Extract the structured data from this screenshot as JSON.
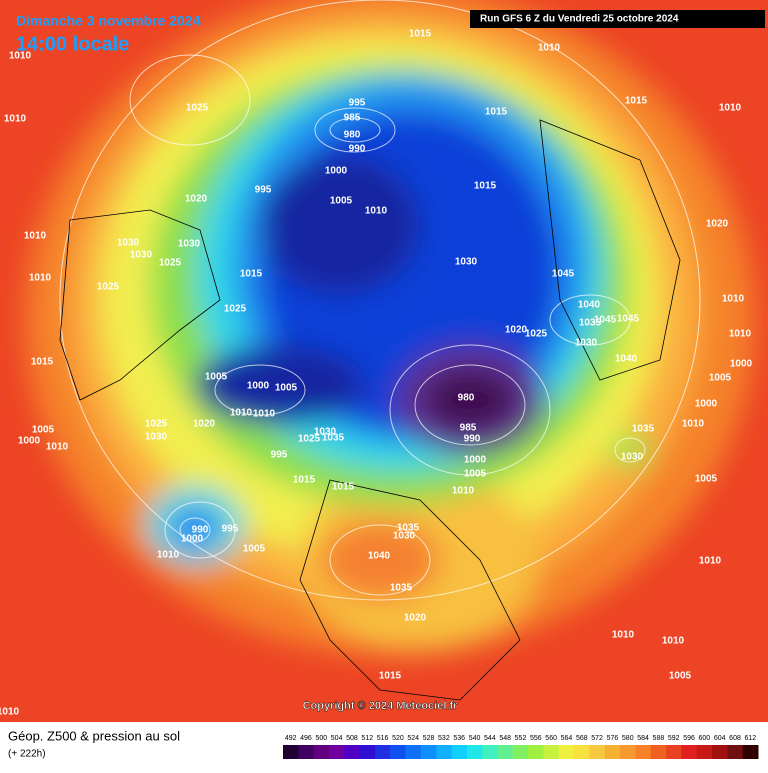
{
  "header": {
    "title": "Dimanche 3 novembre 2024",
    "subtitle": "14:00 locale",
    "run": "Run GFS 6 Z du Vendredi 25 octobre 2024"
  },
  "copyright": "Copyright © 2024 Meteociel.fr",
  "legend": {
    "title": "Géop. Z500 & pression au sol",
    "subtitle": "(+ 222h)"
  },
  "colorbar": {
    "values": [
      492,
      496,
      500,
      504,
      508,
      512,
      516,
      520,
      524,
      528,
      532,
      536,
      540,
      544,
      548,
      552,
      556,
      560,
      564,
      568,
      572,
      576,
      580,
      584,
      588,
      592,
      596,
      600,
      604,
      608,
      612
    ],
    "colors": [
      "#200030",
      "#400060",
      "#600080",
      "#7000a0",
      "#5000c0",
      "#3010d0",
      "#2030e0",
      "#1050f0",
      "#1070f8",
      "#1090ff",
      "#10b0ff",
      "#10d0ff",
      "#20e8e8",
      "#40f0c0",
      "#60f090",
      "#80f060",
      "#a0f040",
      "#c8f040",
      "#f0f040",
      "#f8e040",
      "#f8c840",
      "#f8b030",
      "#f89830",
      "#f88028",
      "#f06020",
      "#e84020",
      "#e02020",
      "#c81818",
      "#a01010",
      "#701010",
      "#300000"
    ]
  },
  "pressure_labels": [
    1015,
    1010,
    1010,
    1010,
    1025,
    1010,
    995,
    985,
    980,
    990,
    1015,
    1015,
    1000,
    995,
    1005,
    1010,
    1015,
    1020,
    1020,
    1010,
    1030,
    1030,
    1030,
    1025,
    1030,
    1045,
    1010,
    1015,
    1025,
    1010,
    1040,
    1025,
    1020,
    1025,
    1035,
    1045,
    1045,
    1010,
    1030,
    1040,
    1000,
    1015,
    1005,
    1000,
    1005,
    1005,
    980,
    1000,
    1010,
    1010,
    1005,
    1025,
    1020,
    1030,
    985,
    1010,
    1035,
    1000,
    1010,
    990,
    1025,
    1035,
    995,
    1030,
    1000,
    1030,
    1005,
    1015,
    1015,
    1010,
    1005,
    990,
    995,
    1000,
    1035,
    1030,
    1010,
    1005,
    1040,
    1010,
    1035,
    1020,
    1010,
    1010,
    1015,
    1005,
    1010
  ]
}
